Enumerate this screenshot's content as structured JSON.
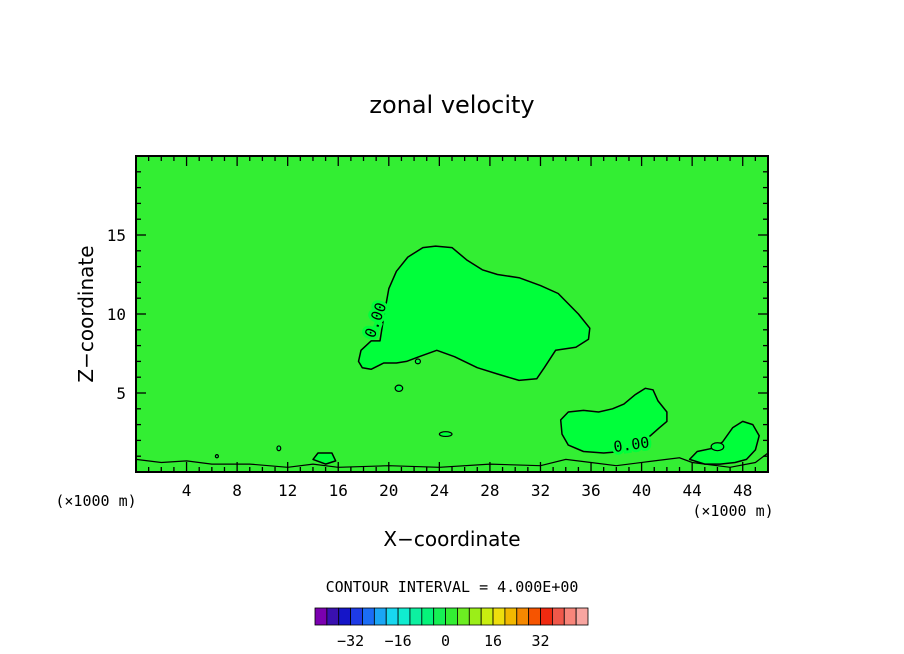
{
  "chart_data": {
    "type": "contour",
    "title": "zonal velocity",
    "xlabel": "X−coordinate",
    "ylabel": "Z−coordinate",
    "x_unit_left": "(×1000 m)",
    "x_unit_right": "(×1000 m)",
    "xlim": [
      0,
      50
    ],
    "ylim": [
      0,
      20
    ],
    "x_ticks": [
      {
        "value": 4,
        "label": "4"
      },
      {
        "value": 8,
        "label": "8"
      },
      {
        "value": 12,
        "label": "12"
      },
      {
        "value": 16,
        "label": "16"
      },
      {
        "value": 20,
        "label": "20"
      },
      {
        "value": 24,
        "label": "24"
      },
      {
        "value": 28,
        "label": "28"
      },
      {
        "value": 32,
        "label": "32"
      },
      {
        "value": 36,
        "label": "36"
      },
      {
        "value": 40,
        "label": "40"
      },
      {
        "value": 44,
        "label": "44"
      },
      {
        "value": 48,
        "label": "48"
      }
    ],
    "y_ticks": [
      {
        "value": 5,
        "label": "5"
      },
      {
        "value": 10,
        "label": "10"
      },
      {
        "value": 15,
        "label": "15"
      }
    ],
    "background_fill": "#33ee33",
    "contour_interval_text": "CONTOUR INTERVAL = 4.000E+00",
    "contours": [
      {
        "level_label": "0.00",
        "label_at": [
          19.0,
          9.6
        ],
        "label_rotation": -70,
        "fill": "#00ff3a",
        "points": [
          [
            17.6,
            7.0
          ],
          [
            17.8,
            7.7
          ],
          [
            18.6,
            8.3
          ],
          [
            19.3,
            8.3
          ],
          [
            19.6,
            9.8
          ],
          [
            20.0,
            11.6
          ],
          [
            20.6,
            12.7
          ],
          [
            21.5,
            13.6
          ],
          [
            22.7,
            14.2
          ],
          [
            23.7,
            14.3
          ],
          [
            25.0,
            14.2
          ],
          [
            26.2,
            13.4
          ],
          [
            27.4,
            12.8
          ],
          [
            28.6,
            12.5
          ],
          [
            30.3,
            12.3
          ],
          [
            32.0,
            11.8
          ],
          [
            33.4,
            11.3
          ],
          [
            35.0,
            10.0
          ],
          [
            35.9,
            9.1
          ],
          [
            35.8,
            8.4
          ],
          [
            34.8,
            7.9
          ],
          [
            33.2,
            7.7
          ],
          [
            32.3,
            6.6
          ],
          [
            31.7,
            5.9
          ],
          [
            30.3,
            5.8
          ],
          [
            28.6,
            6.2
          ],
          [
            27.0,
            6.6
          ],
          [
            25.2,
            7.3
          ],
          [
            23.8,
            7.7
          ],
          [
            22.4,
            7.3
          ],
          [
            21.4,
            7.0
          ],
          [
            20.6,
            6.9
          ],
          [
            19.6,
            6.9
          ],
          [
            18.6,
            6.5
          ],
          [
            17.9,
            6.6
          ]
        ]
      },
      {
        "level_label": "0.00",
        "label_at": [
          39.2,
          1.7
        ],
        "label_rotation": -8,
        "fill": "#00ff3a",
        "points": [
          [
            33.6,
            3.3
          ],
          [
            34.2,
            3.8
          ],
          [
            35.4,
            3.9
          ],
          [
            36.6,
            3.8
          ],
          [
            37.7,
            4.0
          ],
          [
            38.6,
            4.3
          ],
          [
            39.5,
            4.9
          ],
          [
            40.3,
            5.3
          ],
          [
            40.9,
            5.2
          ],
          [
            41.3,
            4.5
          ],
          [
            42.0,
            3.8
          ],
          [
            42.0,
            3.2
          ],
          [
            41.4,
            2.8
          ],
          [
            40.7,
            2.3
          ],
          [
            39.7,
            1.8
          ],
          [
            38.4,
            1.3
          ],
          [
            37.0,
            1.2
          ],
          [
            35.4,
            1.3
          ],
          [
            34.2,
            1.7
          ],
          [
            33.7,
            2.4
          ]
        ]
      },
      {
        "level_label": "",
        "fill": "#00ff3a",
        "points": [
          [
            43.8,
            0.8
          ],
          [
            44.4,
            1.3
          ],
          [
            45.6,
            1.5
          ],
          [
            46.4,
            1.9
          ],
          [
            47.2,
            2.8
          ],
          [
            48.0,
            3.2
          ],
          [
            48.8,
            3.0
          ],
          [
            49.3,
            2.3
          ],
          [
            49.0,
            1.4
          ],
          [
            48.3,
            0.8
          ],
          [
            47.4,
            0.6
          ],
          [
            46.2,
            0.5
          ],
          [
            45.0,
            0.5
          ]
        ]
      },
      {
        "level_label": "",
        "fill": "#00ff3a",
        "points": [
          [
            14.0,
            0.8
          ],
          [
            14.4,
            1.2
          ],
          [
            15.5,
            1.2
          ],
          [
            15.8,
            0.7
          ],
          [
            15.0,
            0.5
          ]
        ]
      }
    ],
    "small_features": [
      {
        "x": 20.8,
        "y": 5.3,
        "rx": 0.3,
        "ry": 0.2
      },
      {
        "x": 22.3,
        "y": 7.0,
        "rx": 0.2,
        "ry": 0.15
      },
      {
        "x": 24.5,
        "y": 2.4,
        "rx": 0.5,
        "ry": 0.15
      },
      {
        "x": 6.4,
        "y": 1.0,
        "rx": 0.1,
        "ry": 0.1
      },
      {
        "x": 11.3,
        "y": 1.5,
        "rx": 0.15,
        "ry": 0.15
      },
      {
        "x": 46.0,
        "y": 1.6,
        "rx": 0.5,
        "ry": 0.25
      }
    ],
    "colorbar": {
      "colors": [
        "#7b00b0",
        "#3a10b0",
        "#1515c8",
        "#1e3be6",
        "#1b6df5",
        "#1aa6f5",
        "#18d7ef",
        "#10ecd0",
        "#0df0a0",
        "#05f37a",
        "#16f055",
        "#33ee33",
        "#6cee22",
        "#9bee18",
        "#c9ee10",
        "#eede0d",
        "#f2b800",
        "#f58800",
        "#f65400",
        "#f02a10",
        "#f0584a",
        "#f8857a",
        "#f8a5a0"
      ],
      "ticks": [
        {
          "value": -32,
          "label": "−32"
        },
        {
          "value": -16,
          "label": "−16"
        },
        {
          "value": 0,
          "label": "0"
        },
        {
          "value": 16,
          "label": "16"
        },
        {
          "value": 32,
          "label": "32"
        }
      ]
    }
  }
}
